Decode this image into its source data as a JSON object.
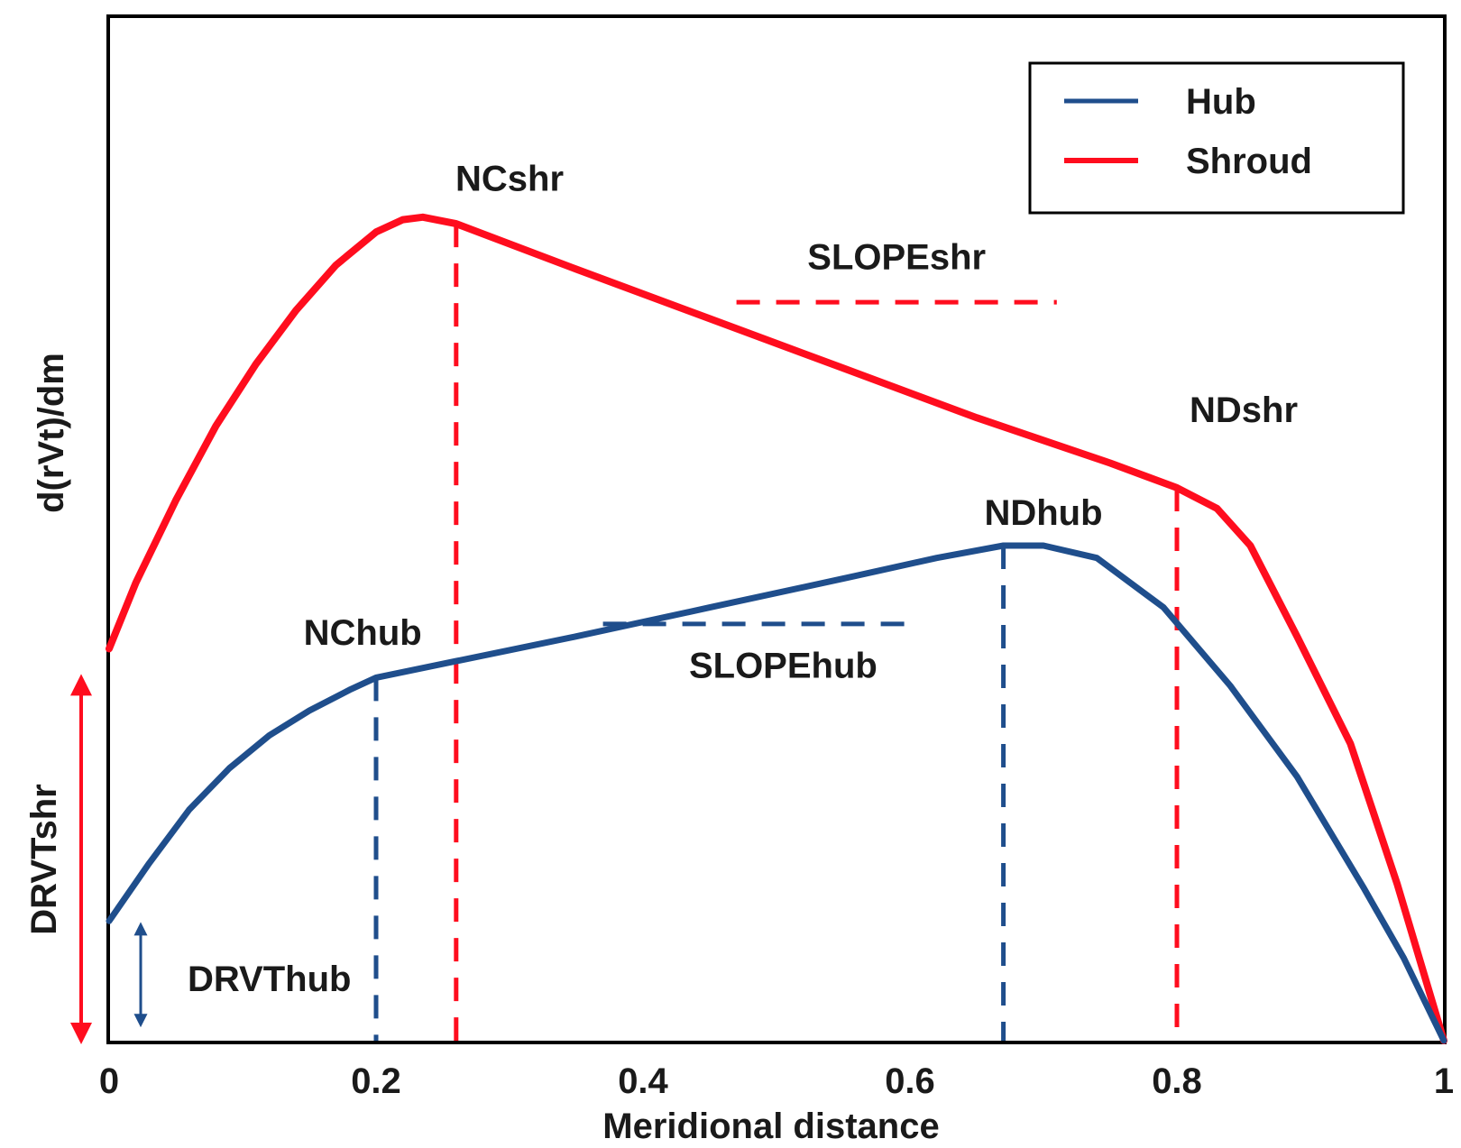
{
  "chart_data": {
    "type": "line",
    "title": "",
    "xlabel": "Meridional distance",
    "ylabel": "d(rVt)/dm",
    "xlim": [
      0,
      1
    ],
    "ylim": [
      0,
      1
    ],
    "xticks": [
      {
        "value": 0,
        "label": "0"
      },
      {
        "value": 0.2,
        "label": "0.2"
      },
      {
        "value": 0.4,
        "label": "0.4"
      },
      {
        "value": 0.6,
        "label": "0.6"
      },
      {
        "value": 0.8,
        "label": "0.8"
      },
      {
        "value": 1,
        "label": "1"
      }
    ],
    "legend": {
      "position": "top-right",
      "entries": [
        {
          "name": "Hub",
          "color": "#1f4e8c"
        },
        {
          "name": "Shroud",
          "color": "#ff0d1e"
        }
      ]
    },
    "series": [
      {
        "name": "Shroud",
        "color": "#ff0d1e",
        "x": [
          0,
          0.02,
          0.05,
          0.08,
          0.11,
          0.14,
          0.17,
          0.2,
          0.22,
          0.235,
          0.26,
          0.35,
          0.45,
          0.55,
          0.65,
          0.75,
          0.8,
          0.83,
          0.855,
          0.89,
          0.93,
          0.965,
          1
        ],
        "values": [
          0.475,
          0.555,
          0.655,
          0.745,
          0.82,
          0.885,
          0.94,
          0.98,
          0.995,
          0.998,
          0.99,
          0.935,
          0.875,
          0.815,
          0.755,
          0.7,
          0.67,
          0.645,
          0.6,
          0.49,
          0.36,
          0.19,
          0.0
        ]
      },
      {
        "name": "Hub",
        "color": "#1f4e8c",
        "x": [
          0,
          0.03,
          0.06,
          0.09,
          0.12,
          0.15,
          0.18,
          0.2,
          0.26,
          0.35,
          0.45,
          0.55,
          0.62,
          0.67,
          0.7,
          0.74,
          0.79,
          0.84,
          0.89,
          0.94,
          0.97,
          1
        ],
        "values": [
          0.145,
          0.215,
          0.28,
          0.33,
          0.37,
          0.4,
          0.425,
          0.44,
          0.46,
          0.49,
          0.525,
          0.56,
          0.585,
          0.6,
          0.6,
          0.585,
          0.525,
          0.43,
          0.32,
          0.185,
          0.1,
          0.0
        ]
      }
    ],
    "reference_lines": [
      {
        "label": "NCshr",
        "color": "#ff0d1e",
        "x": 0.26,
        "y_top": 0.99,
        "label_x": 0.3,
        "label_y": 1.03
      },
      {
        "label": "NDshr",
        "color": "#ff0d1e",
        "x": 0.8,
        "y_top": 0.67,
        "label_x": 0.85,
        "label_y": 0.75
      },
      {
        "label": "NChub",
        "color": "#1f4e8c",
        "x": 0.2,
        "y_top": 0.44,
        "label_x": 0.19,
        "label_y": 0.48
      },
      {
        "label": "NDhub",
        "color": "#1f4e8c",
        "x": 0.67,
        "y_top": 0.6,
        "label_x": 0.7,
        "label_y": 0.625
      }
    ],
    "slope_markers": [
      {
        "label": "SLOPEshr",
        "color": "#ff0d1e",
        "x_start": 0.47,
        "x_end": 0.71,
        "y": 0.895,
        "label_x": 0.59,
        "label_y": 0.935
      },
      {
        "label": "SLOPEhub",
        "color": "#1f4e8c",
        "x_start": 0.37,
        "x_end": 0.6,
        "y": 0.505,
        "label_x": 0.505,
        "label_y": 0.44
      }
    ],
    "magnitude_arrows": [
      {
        "label": "DRVTshr",
        "color": "#ff0d1e",
        "y_from": 0,
        "y_to": 0.44
      },
      {
        "label": "DRVThub",
        "color": "#1f4e8c",
        "y_from": 0.02,
        "y_to": 0.14
      }
    ]
  }
}
